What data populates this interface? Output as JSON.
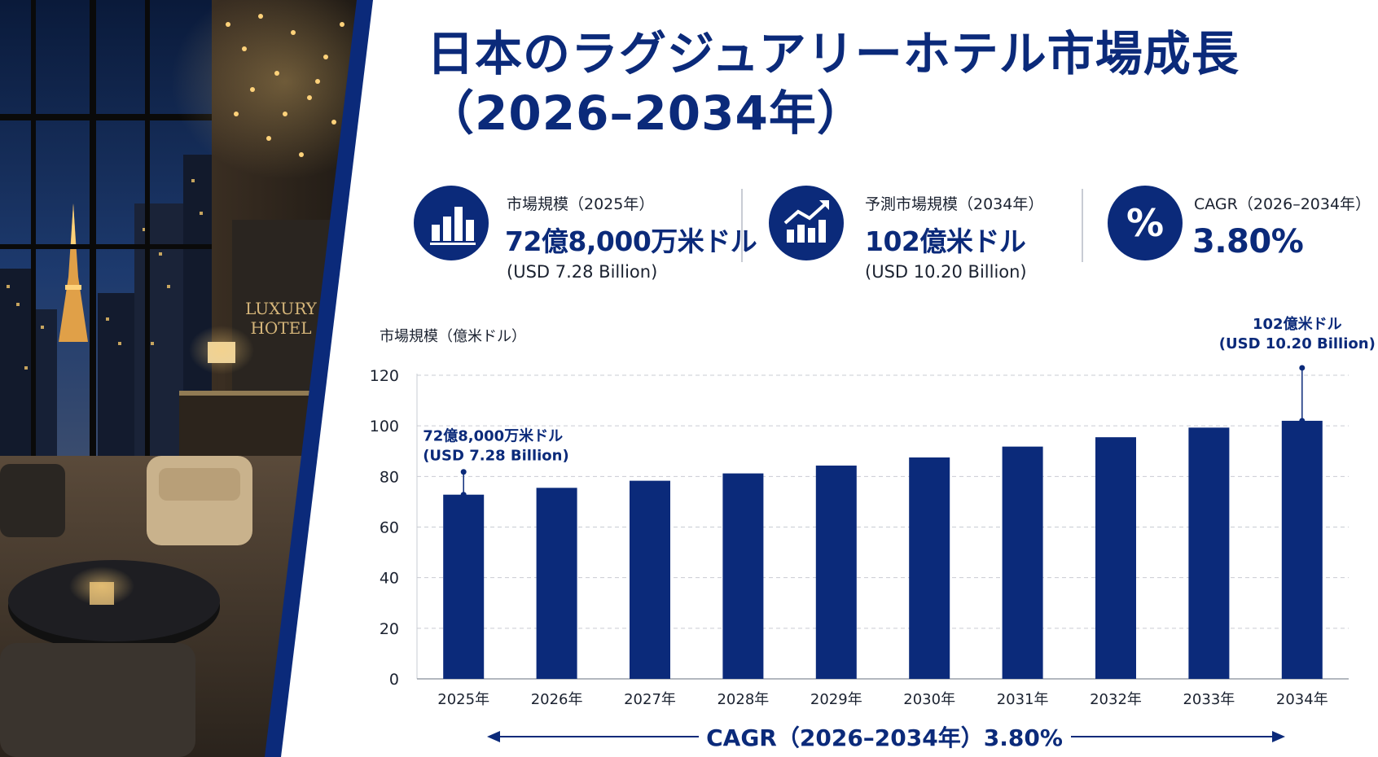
{
  "header": {
    "title_line1": "日本のラグジュアリーホテル市場成長",
    "title_line2": "（2026–2034年）"
  },
  "photo": {
    "sign_line1": "LUXURY",
    "sign_line2": "HOTEL"
  },
  "stats": [
    {
      "icon": "bar-chart-icon",
      "label": "市場規模（2025年）",
      "value": "72億8,000万米ドル",
      "sub": "(USD 7.28 Billion)"
    },
    {
      "icon": "trend-up-chart-icon",
      "label": "予測市場規模（2034年）",
      "value": "102億米ドル",
      "sub": "(USD 10.20 Billion)"
    },
    {
      "icon": "percent-icon",
      "label": "CAGR（2026–2034年）",
      "value": "3.80%"
    }
  ],
  "colors": {
    "accent": "#0b2a7a",
    "bar": "#0b2a7a",
    "grid": "#c9ccd3"
  },
  "chart_data": {
    "type": "bar",
    "ylabel": "市場規模（億米ドル）",
    "categories": [
      "2025年",
      "2026年",
      "2027年",
      "2028年",
      "2029年",
      "2030年",
      "2031年",
      "2032年",
      "2033年",
      "2034年"
    ],
    "values": [
      72.8,
      75.5,
      78.3,
      81.2,
      84.3,
      87.5,
      91.8,
      95.5,
      99.3,
      102
    ],
    "ylim": [
      0,
      120
    ],
    "yticks": [
      0,
      20,
      40,
      60,
      80,
      100,
      120
    ],
    "grid": true,
    "annotations": [
      {
        "index": 0,
        "line1": "72億8,000万米ドル",
        "line2": "(USD 7.28 Billion)"
      },
      {
        "index": 9,
        "line1": "102億米ドル",
        "line2": "(USD 10.20 Billion)"
      }
    ]
  },
  "footer": {
    "cagr_text": "CAGR（2026–2034年）3.80%"
  }
}
